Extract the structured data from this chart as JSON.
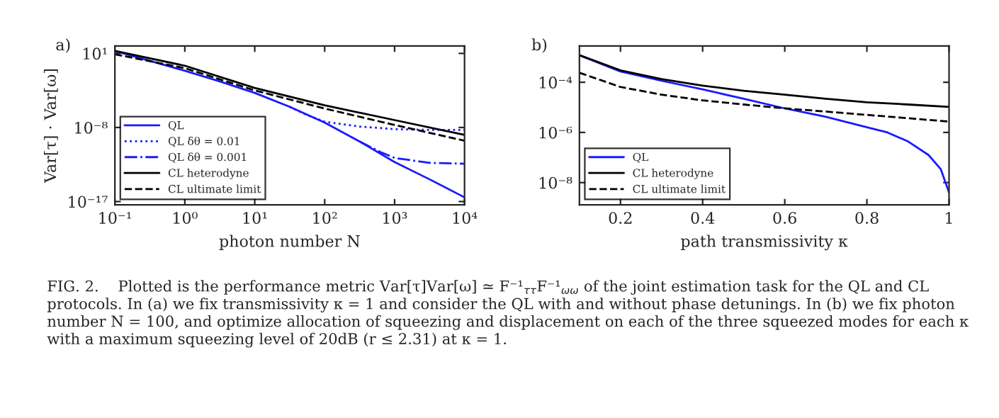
{
  "chart_data": [
    {
      "type": "line",
      "xlabel": "photon number N",
      "ylabel": "Var[τ] · Var[ω]",
      "log": "xy",
      "xlim": [
        0.1,
        10000
      ],
      "xticks": [
        {
          "value": 0.1,
          "label": "10⁻¹"
        },
        {
          "value": 1,
          "label": "10⁰"
        },
        {
          "value": 10,
          "label": "10¹"
        },
        {
          "value": 100,
          "label": "10²"
        },
        {
          "value": 1000,
          "label": "10³"
        },
        {
          "value": 10000,
          "label": "10⁴"
        }
      ],
      "ylim": [
        4e-18,
        80
      ],
      "yticks": [
        {
          "value": 1e-17,
          "label": "10⁻¹⁷"
        },
        {
          "value": 1e-08,
          "label": "10⁻⁸"
        },
        {
          "value": 10,
          "label": "10¹"
        }
      ],
      "legend": "bottom left",
      "grid": false,
      "annotations": [
        "a)"
      ],
      "series": [
        {
          "name": "QL",
          "color": "#1a1aff",
          "line_style": "solid",
          "x": [
            0.1,
            0.316,
            1,
            3.16,
            10,
            31.6,
            100,
            316,
            1000,
            3162,
            10000
          ],
          "values": [
            20,
            1.26,
            0.079,
            0.004,
            0.00016,
            3.2e-06,
            4e-08,
            2e-10,
            6.3e-13,
            5e-15,
            3.2e-17
          ]
        },
        {
          "name": "QL δθ = 0.01",
          "color": "#1a1aff",
          "line_style": "dotted",
          "x": [
            31.6,
            56,
            100,
            316,
            1000,
            3162,
            10000
          ],
          "values": [
            3.2e-06,
            3.2e-07,
            5e-08,
            1.3e-08,
            6.3e-09,
            5e-09,
            5e-09
          ]
        },
        {
          "name": "QL δθ = 0.001",
          "color": "#1a1aff",
          "line_style": "dashdot",
          "x": [
            316,
            631,
            1000,
            3162,
            10000
          ],
          "values": [
            2e-10,
            1e-11,
            2e-12,
            5e-13,
            4e-13
          ]
        },
        {
          "name": "CL heterodyne",
          "color": "#000000",
          "line_style": "solid",
          "x": [
            0.1,
            1,
            10,
            100,
            1000,
            10000
          ],
          "values": [
            20,
            0.32,
            0.00063,
            5e-06,
            7.9e-08,
            1.26e-09
          ]
        },
        {
          "name": "CL ultimate limit",
          "color": "#000000",
          "line_style": "dashed",
          "x": [
            0.1,
            1,
            10,
            100,
            1000,
            10000
          ],
          "values": [
            7.9,
            0.16,
            0.00032,
            2e-06,
            2e-08,
            2.5e-10
          ]
        }
      ]
    },
    {
      "type": "line",
      "xlabel": "path transmissivity κ",
      "log": "y",
      "xlim": [
        0.1,
        1
      ],
      "xticks": [
        0.2,
        0.4,
        0.6,
        0.8,
        1
      ],
      "ylim": [
        1.3e-09,
        0.0028
      ],
      "yticks": [
        {
          "value": 1e-08,
          "label": "10⁻⁸"
        },
        {
          "value": 1e-06,
          "label": "10⁻⁶"
        },
        {
          "value": 0.0001,
          "label": "10⁻⁴"
        }
      ],
      "legend": "bottom left",
      "grid": false,
      "annotations": [
        "b)",
        "FIG. 2.    Plotted is the performance metric Var[τ]Var[ω] ≃ F⁻¹$_{ττ}$F⁻¹$_{ωω}$ of the joint estimation task for the QL and CL protocols. In (a) we fix transmissivity κ = 1 and consider the QL with and without phase detunings. In (b) we fix photon number N = 100, and optimize allocation of squeezing and displacement on each of the three squeezed modes for each κ with a maximum squeezing level of 20dB (r ≤ 2.31) at κ = 1."
      ],
      "series": [
        {
          "name": "QL",
          "color": "#1a1aff",
          "line_style": "solid",
          "x": [
            0.1,
            0.2,
            0.3,
            0.4,
            0.5,
            0.6,
            0.7,
            0.8,
            0.85,
            0.9,
            0.95,
            0.98,
            1.0
          ],
          "values": [
            0.0012,
            0.00027,
            0.000115,
            5.2e-05,
            2.2e-05,
            9.1e-06,
            4.2e-06,
            1.6e-06,
            1e-06,
            4.4e-07,
            1.26e-07,
            3.4e-08,
            4e-09
          ]
        },
        {
          "name": "CL heterodyne",
          "color": "#000000",
          "line_style": "solid",
          "x": [
            0.1,
            0.2,
            0.3,
            0.4,
            0.5,
            0.6,
            0.7,
            0.8,
            0.9,
            1.0
          ],
          "values": [
            0.0012,
            0.0003,
            0.000135,
            7.4e-05,
            4.6e-05,
            3.2e-05,
            2.2e-05,
            1.6e-05,
            1.3e-05,
            1.05e-05
          ]
        },
        {
          "name": "CL ultimate limit",
          "color": "#000000",
          "line_style": "dashed",
          "x": [
            0.1,
            0.2,
            0.3,
            0.4,
            0.5,
            0.6,
            0.7,
            0.8,
            0.9,
            1.0
          ],
          "values": [
            0.00024,
            6.5e-05,
            3.2e-05,
            1.9e-05,
            1.3e-05,
            9.1e-06,
            6.8e-06,
            5e-06,
            3.7e-06,
            2.7e-06
          ]
        }
      ]
    }
  ]
}
